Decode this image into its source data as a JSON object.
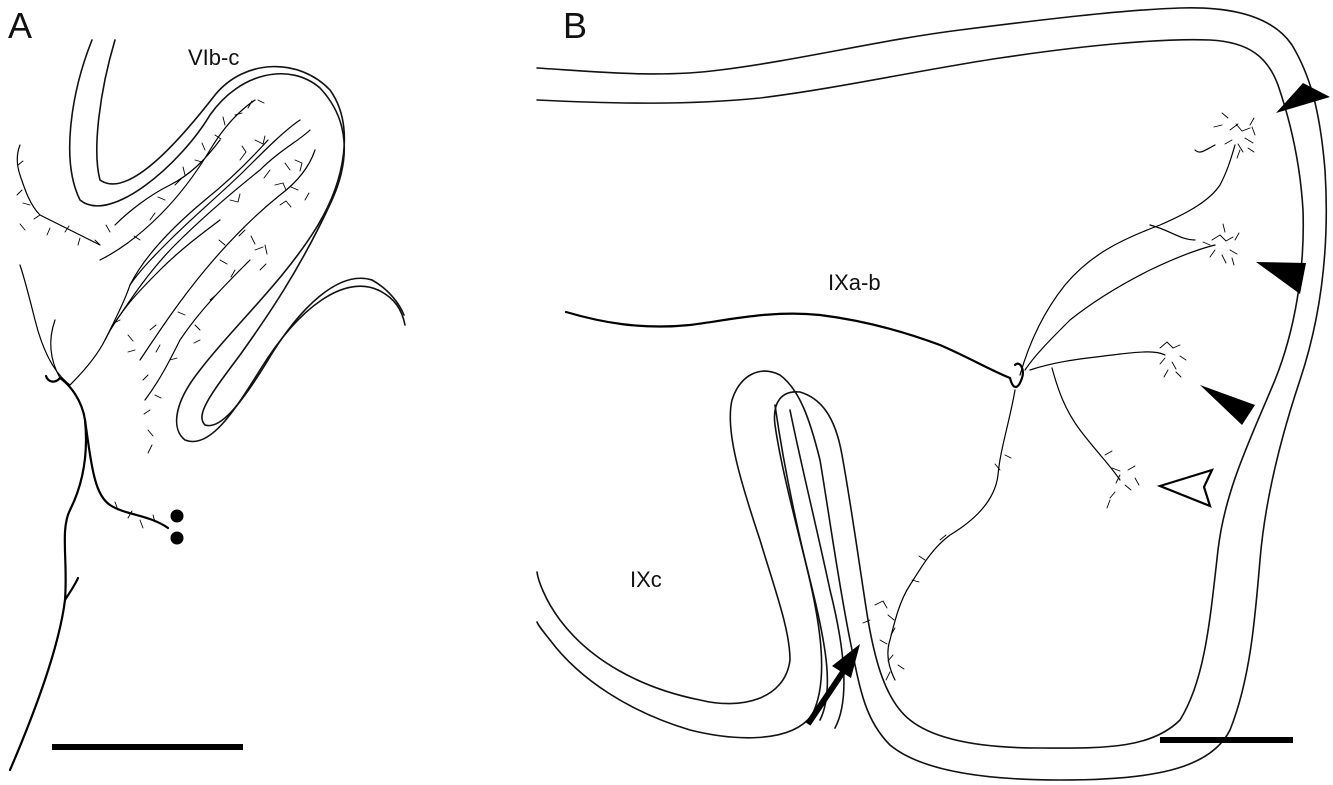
{
  "panel_a": {
    "label": "A",
    "region": "VIb-c"
  },
  "panel_b": {
    "label": "B",
    "region_upper": "IXa-b",
    "region_lower": "IXc"
  },
  "colors": {
    "ink": "#000000",
    "background": "#ffffff"
  },
  "icons": {
    "arrowhead_filled": "filled-arrowhead-icon",
    "arrowhead_open": "open-arrowhead-icon",
    "arrow": "arrow-icon",
    "dot": "dot-icon"
  }
}
